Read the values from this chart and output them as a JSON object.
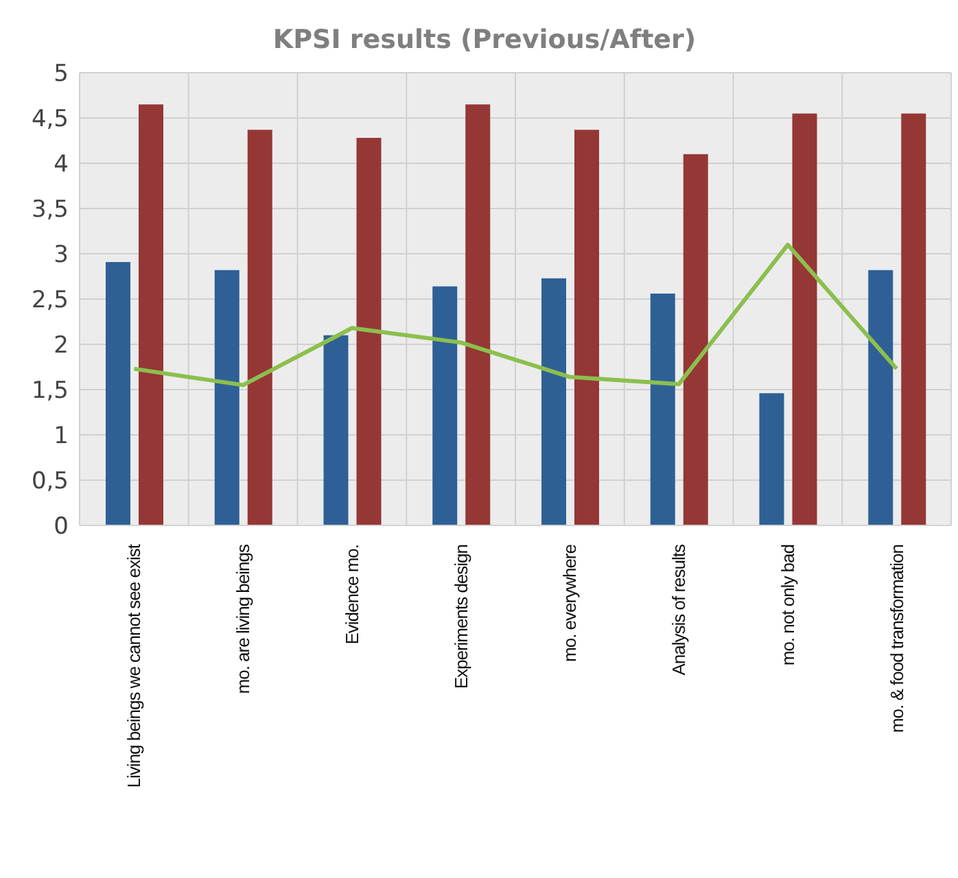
{
  "chart_data": {
    "type": "bar",
    "title": "KPSI results (Previous/After)",
    "categories": [
      "Living beings we cannot see exist",
      "mo. are living beings",
      "Evidence mo.",
      "Experiments design",
      "mo. everywhere",
      "Analysis of results",
      "mo. not only bad",
      "mo. & food transformation"
    ],
    "series": [
      {
        "color": "#2e6096",
        "values": [
          2.91,
          2.82,
          2.1,
          2.64,
          2.73,
          2.56,
          1.46,
          2.82
        ]
      },
      {
        "color": "#953735",
        "values": [
          4.65,
          4.37,
          4.28,
          4.65,
          4.37,
          4.1,
          4.55,
          4.55
        ]
      },
      {
        "type": "line",
        "color": "#8cbf4e",
        "values": [
          1.73,
          1.55,
          2.18,
          2.02,
          1.64,
          1.56,
          3.1,
          1.73
        ]
      }
    ],
    "ylim": [
      0,
      5
    ],
    "yticks": [
      0,
      {
        "value": 0.5,
        "label": "0,5"
      },
      1,
      {
        "value": 1.5,
        "label": "1,5"
      },
      2,
      {
        "value": 2.5,
        "label": "2,5"
      },
      3,
      {
        "value": 3.5,
        "label": "3,5"
      },
      4,
      {
        "value": 4.5,
        "label": "4,5"
      },
      5
    ],
    "grid": true,
    "marker": "none"
  }
}
